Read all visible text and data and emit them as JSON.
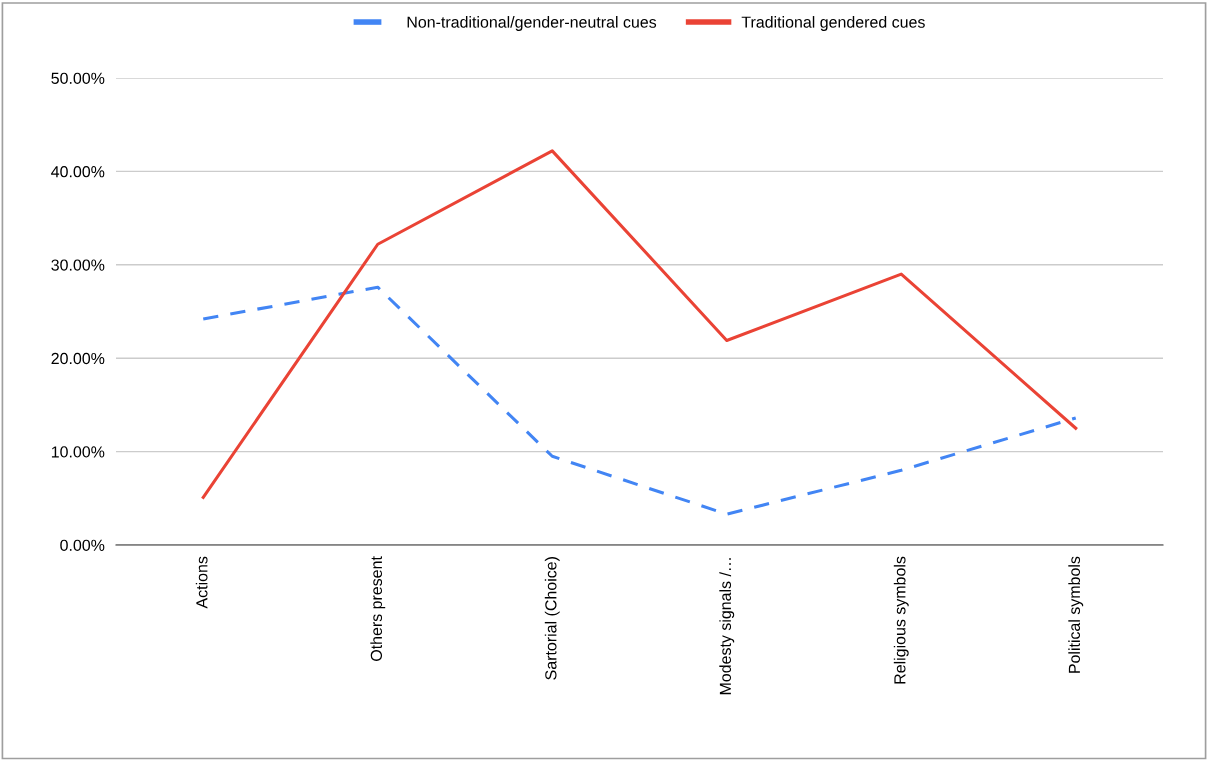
{
  "chart_data": {
    "type": "line",
    "categories": [
      "Actions",
      "Others present",
      "Sartorial (Choice)",
      "Modesty signals /…",
      "Religious symbols",
      "Political symbols"
    ],
    "series": [
      {
        "name": "Non-traditional/gender-neutral cues",
        "color": "#4285f4",
        "line_style": "dashed",
        "values": [
          24.2,
          27.6,
          9.5,
          3.3,
          8.0,
          13.6
        ]
      },
      {
        "name": "Traditional gendered cues",
        "color": "#ea4335",
        "line_style": "solid",
        "values": [
          5.1,
          32.2,
          42.2,
          21.9,
          29.0,
          12.5
        ]
      }
    ],
    "ylim": [
      0,
      50
    ],
    "yticks": [
      {
        "value": 0,
        "label": "0.00%"
      },
      {
        "value": 10,
        "label": "10.00%"
      },
      {
        "value": 20,
        "label": "20.00%"
      },
      {
        "value": 30,
        "label": "30.00%"
      },
      {
        "value": 40,
        "label": "40.00%"
      },
      {
        "value": 50,
        "label": "50.00%"
      }
    ],
    "grid": "y",
    "legend": "top",
    "marker": "none"
  }
}
